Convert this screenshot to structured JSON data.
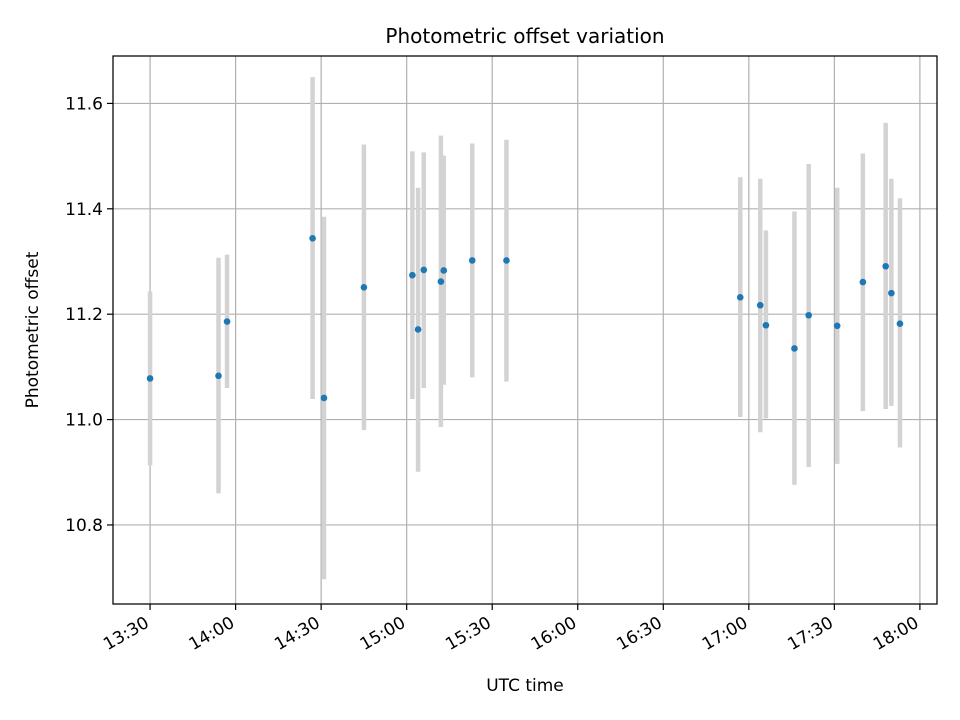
{
  "chart_data": {
    "type": "scatter",
    "title": "Photometric offset variation",
    "xlabel": "UTC time",
    "ylabel": "Photometric offset",
    "x_ticks": [
      "13:30",
      "14:00",
      "14:30",
      "15:00",
      "15:30",
      "16:00",
      "16:30",
      "17:00",
      "17:30",
      "18:00"
    ],
    "y_ticks": [
      "10.8",
      "11.0",
      "11.2",
      "11.4",
      "11.6"
    ],
    "xlim": [
      "13:17",
      "18:06"
    ],
    "ylim": [
      10.65,
      11.69
    ],
    "grid": true,
    "colors": {
      "point": "#1f77b4",
      "errorbar": "#d3d3d3",
      "grid": "#b0b0b0"
    },
    "series": [
      {
        "points": [
          {
            "x": "13:30",
            "y": 11.078,
            "ylow": 10.913,
            "yhigh": 11.243
          },
          {
            "x": "13:54",
            "y": 11.083,
            "ylow": 10.86,
            "yhigh": 11.307
          },
          {
            "x": "13:57",
            "y": 11.186,
            "ylow": 11.06,
            "yhigh": 11.313
          },
          {
            "x": "14:27",
            "y": 11.344,
            "ylow": 11.039,
            "yhigh": 11.65
          },
          {
            "x": "14:31",
            "y": 11.041,
            "ylow": 10.697,
            "yhigh": 11.385
          },
          {
            "x": "14:45",
            "y": 11.251,
            "ylow": 10.98,
            "yhigh": 11.522
          },
          {
            "x": "15:02",
            "y": 11.274,
            "ylow": 11.039,
            "yhigh": 11.509
          },
          {
            "x": "15:04",
            "y": 11.171,
            "ylow": 10.901,
            "yhigh": 11.44
          },
          {
            "x": "15:06",
            "y": 11.284,
            "ylow": 11.06,
            "yhigh": 11.507
          },
          {
            "x": "15:12",
            "y": 11.262,
            "ylow": 10.986,
            "yhigh": 11.539
          },
          {
            "x": "15:13",
            "y": 11.283,
            "ylow": 11.066,
            "yhigh": 11.501
          },
          {
            "x": "15:23",
            "y": 11.302,
            "ylow": 11.08,
            "yhigh": 11.524
          },
          {
            "x": "15:35",
            "y": 11.302,
            "ylow": 11.072,
            "yhigh": 11.531
          },
          {
            "x": "16:57",
            "y": 11.232,
            "ylow": 11.005,
            "yhigh": 11.46
          },
          {
            "x": "17:04",
            "y": 11.217,
            "ylow": 10.976,
            "yhigh": 11.457
          },
          {
            "x": "17:06",
            "y": 11.179,
            "ylow": 11.002,
            "yhigh": 11.359
          },
          {
            "x": "17:16",
            "y": 11.135,
            "ylow": 10.876,
            "yhigh": 11.395
          },
          {
            "x": "17:21",
            "y": 11.198,
            "ylow": 10.91,
            "yhigh": 11.485
          },
          {
            "x": "17:31",
            "y": 11.178,
            "ylow": 10.916,
            "yhigh": 11.44
          },
          {
            "x": "17:40",
            "y": 11.261,
            "ylow": 11.016,
            "yhigh": 11.505
          },
          {
            "x": "17:48",
            "y": 11.291,
            "ylow": 11.02,
            "yhigh": 11.563
          },
          {
            "x": "17:50",
            "y": 11.24,
            "ylow": 11.026,
            "yhigh": 11.457
          },
          {
            "x": "17:53",
            "y": 11.182,
            "ylow": 10.947,
            "yhigh": 11.42
          }
        ]
      }
    ]
  }
}
